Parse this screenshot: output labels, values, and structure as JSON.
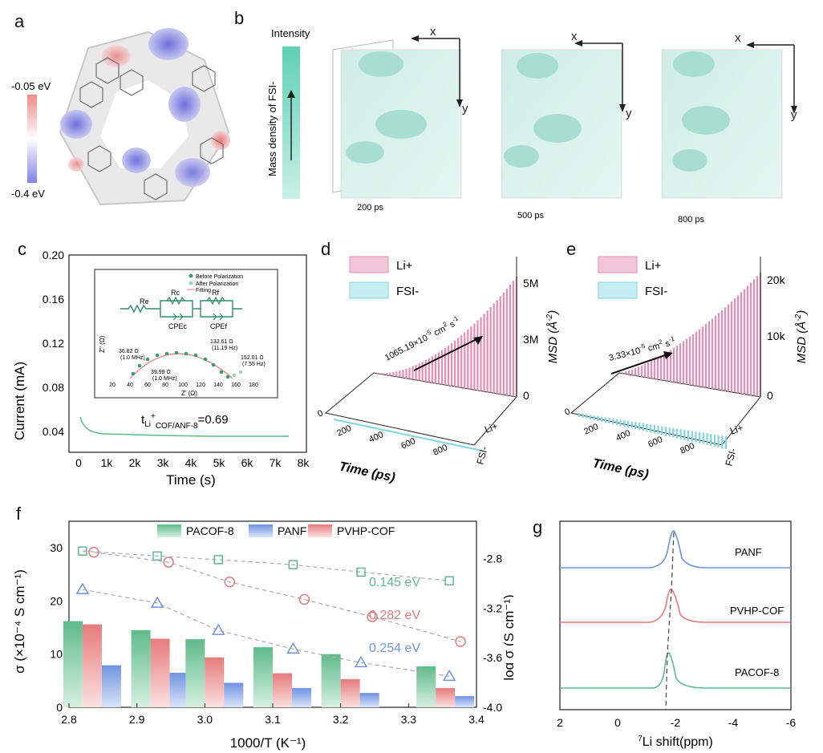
{
  "colors": {
    "green": "#5fba8a",
    "green_light": "#bfe6d2",
    "blue": "#6f93e0",
    "red": "#e67b7b",
    "teal": "#8fd9c9",
    "pink": "#e58db0",
    "cyan": "#7fd6e0"
  },
  "panel_a": {
    "label": "a",
    "scale_top": "-0.05 eV",
    "scale_bottom": "-0.4 eV"
  },
  "panel_b": {
    "label": "b",
    "intensity": "Intensity",
    "density_label": "Mass density of FSI-",
    "x": "x",
    "y": "y",
    "times": [
      "200 ps",
      "500 ps",
      "800 ps"
    ]
  },
  "panel_c": {
    "label": "c",
    "ylabel": "Current (mA)",
    "xlabel": "Time (s)",
    "yticks": [
      "0.20",
      "0.16",
      "0.12",
      "0.08",
      "0.04"
    ],
    "xticks": [
      "0",
      "1k",
      "2k",
      "3k",
      "4k",
      "5k",
      "6k",
      "7k",
      "8k"
    ],
    "tli": "t",
    "tli_sub": "Li",
    "tli_sup": "+",
    "tli_sub2": "COF/ANF-8",
    "tli_value": "=0.69",
    "inset": {
      "legend": [
        "Before Polarization",
        "After Polarization",
        "Fitting"
      ],
      "circuit": [
        "Re",
        "Rc",
        "Rf",
        "CPEc",
        "CPEf"
      ],
      "ylabel": "Z'' (Ω)",
      "xlabel": "Z' (Ω)",
      "xticks": [
        "20",
        "40",
        "60",
        "80",
        "100",
        "120",
        "140",
        "160",
        "180"
      ],
      "ann": [
        "36.82 Ω",
        "(1.0 MHz)",
        "39.99 Ω",
        "(1.0 MHz)",
        "132.61 Ω",
        "(11.19 Hz)",
        "152.01 Ω",
        "(7.55 Hz)"
      ]
    }
  },
  "panel_d": {
    "label": "d",
    "legend": [
      "Li+",
      "FSI-"
    ],
    "rate": "1065.19×10",
    "rate_exp": "-5",
    "rate_unit": " cm",
    "rate_unit_exp": "2",
    "rate_unit2": " s",
    "rate_unit2_exp": "-1",
    "zlabel": "MSD (Å",
    "zlabel_exp": "-2",
    "zlabel_end": ")",
    "zticks": [
      "5M",
      "3M",
      "0"
    ],
    "xticks": [
      "0",
      "200",
      "400",
      "600",
      "800"
    ],
    "xlabel": "Time (ps)",
    "species": [
      "Li+",
      "FSI-"
    ]
  },
  "panel_e": {
    "label": "e",
    "legend": [
      "Li+",
      "FSI-"
    ],
    "rate": "3.33×10",
    "rate_exp": "-5",
    "rate_unit": " cm",
    "rate_unit_exp": "2",
    "rate_unit2": " s",
    "rate_unit2_exp": "-1",
    "zlabel": "MSD (Å",
    "zlabel_exp": "-2",
    "zlabel_end": ")",
    "zticks": [
      "20k",
      "10k",
      "0"
    ],
    "xticks": [
      "0",
      "200",
      "400",
      "600",
      "800"
    ],
    "xlabel": "Time (ps)",
    "species": [
      "Li+",
      "FSI-"
    ]
  },
  "chart_data": {
    "type": "bar",
    "title": "",
    "xlabel": "1000/T (K⁻¹)",
    "ylabel": "σ (×10⁻⁴ S cm⁻¹)",
    "ylabel_right": "log σ (S cm⁻¹)",
    "x": [
      2.82,
      2.92,
      3.0,
      3.1,
      3.2,
      3.34
    ],
    "xlim": [
      2.8,
      3.4
    ],
    "ylim": [
      0,
      35
    ],
    "ylim_right": [
      -4.0,
      -2.5
    ],
    "xticks": [
      "2.8",
      "2.9",
      "3.0",
      "3.1",
      "3.2",
      "3.3",
      "3.4"
    ],
    "yticks": [
      "0",
      "10",
      "20",
      "30"
    ],
    "yticks_right": [
      "-2.8",
      "-3.2",
      "-3.6",
      "-4.0"
    ],
    "series": [
      {
        "name": "PACOF-8",
        "values": [
          16.2,
          14.5,
          12.8,
          11.3,
          10.0,
          7.7
        ]
      },
      {
        "name": "PANF",
        "values": [
          7.9,
          6.5,
          4.6,
          3.6,
          2.7,
          2.1
        ]
      },
      {
        "name": "PVHP-COF",
        "values": [
          15.6,
          12.9,
          9.4,
          6.4,
          5.3,
          3.6
        ]
      }
    ],
    "log_series": [
      {
        "name": "PACOF-8",
        "marker": "square",
        "values": [
          -2.74,
          -2.78,
          -2.81,
          -2.85,
          -2.91,
          -2.98
        ],
        "ea": "0.145 eV"
      },
      {
        "name": "PVHP-COF",
        "marker": "circle",
        "values": [
          -2.75,
          -2.83,
          -2.99,
          -3.13,
          -3.27,
          -3.47
        ],
        "ea": "0.282 eV"
      },
      {
        "name": "PANF",
        "marker": "triangle",
        "values": [
          -3.05,
          -3.16,
          -3.38,
          -3.53,
          -3.64,
          -3.75
        ],
        "ea": "0.254 eV"
      }
    ],
    "marker_x": [
      2.82,
      2.93,
      3.02,
      3.13,
      3.23,
      3.36
    ]
  },
  "panel_f": {
    "label": "f"
  },
  "panel_g": {
    "label": "g",
    "xlabel_pre": "7",
    "xlabel": "Li shift(ppm)",
    "xticks": [
      "2",
      "0",
      "-2",
      "-4",
      "-6"
    ],
    "traces": [
      "PANF",
      "PVHP-COF",
      "PACOF-8"
    ]
  }
}
